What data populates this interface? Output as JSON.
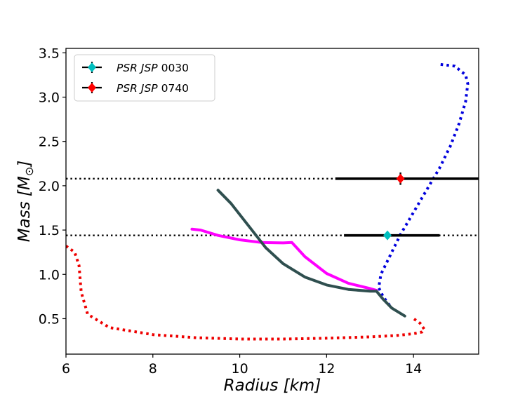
{
  "chart_data": {
    "type": "line",
    "xlabel": {
      "prefix": "Radius [",
      "unit": "km",
      "suffix": "]"
    },
    "ylabel": {
      "prefix": "Mass [",
      "unit": "M",
      "sub": "⊙",
      "suffix": "]"
    },
    "xlim": [
      6,
      15.5
    ],
    "ylim": [
      0.1,
      3.55
    ],
    "xticks": [
      6,
      8,
      10,
      12,
      14
    ],
    "xtick_labels": [
      "6",
      "8",
      "10",
      "12",
      "14"
    ],
    "yticks": [
      0.5,
      1.0,
      1.5,
      2.0,
      2.5,
      3.0,
      3.5
    ],
    "ytick_labels": [
      "0.5",
      "1.0",
      "1.5",
      "2.0",
      "2.5",
      "3.0",
      "3.5"
    ],
    "legend": {
      "placement": "top-left",
      "entries": [
        {
          "label_italic": "PSR JSP",
          "label_number": "0030",
          "color": "#00bfbf",
          "marker": "diamond"
        },
        {
          "label_italic": "PSR JSP",
          "label_number": "0740",
          "color": "#ff0000",
          "marker": "diamond"
        }
      ]
    },
    "measurements": [
      {
        "name": "PSR JSP 0030",
        "color": "#00bfbf",
        "radius": 13.4,
        "mass": 1.44,
        "radius_err": [
          12.4,
          14.6
        ],
        "mass_err": [
          1.41,
          1.47
        ],
        "dotted_line_mass": 1.44
      },
      {
        "name": "PSR JSP 0740",
        "color": "#ff0000",
        "radius": 13.7,
        "mass": 2.08,
        "radius_err": [
          12.2,
          15.5
        ],
        "mass_err": [
          2.01,
          2.15
        ],
        "dotted_line_mass": 2.08
      }
    ],
    "series": [
      {
        "name": "blue-dotted",
        "color": "#0000dd",
        "style": "dotted",
        "x": [
          13.45,
          13.3,
          13.2,
          13.25,
          13.45,
          13.7,
          14.0,
          14.3,
          14.6,
          14.85,
          15.05,
          15.2,
          15.25,
          15.2,
          14.95,
          14.6
        ],
        "y": [
          0.65,
          0.75,
          0.85,
          1.0,
          1.2,
          1.45,
          1.7,
          1.95,
          2.2,
          2.45,
          2.7,
          2.95,
          3.15,
          3.25,
          3.35,
          3.37
        ]
      },
      {
        "name": "red-dotted",
        "color": "#ee0000",
        "style": "dotted",
        "x": [
          6.0,
          6.2,
          6.3,
          6.35,
          6.5,
          7.0,
          8.0,
          9.0,
          10.0,
          11.0,
          12.0,
          13.0,
          13.6,
          14.0,
          14.2,
          14.25,
          14.15,
          14.0
        ],
        "y": [
          1.32,
          1.25,
          1.1,
          0.8,
          0.55,
          0.4,
          0.32,
          0.285,
          0.27,
          0.27,
          0.28,
          0.295,
          0.31,
          0.33,
          0.35,
          0.38,
          0.45,
          0.5
        ]
      },
      {
        "name": "magenta-solid",
        "color": "#ff00ff",
        "style": "solid",
        "x": [
          8.9,
          9.1,
          9.5,
          10.0,
          10.5,
          11.0,
          11.2,
          11.5,
          12.0,
          12.5,
          13.0,
          13.15
        ],
        "y": [
          1.51,
          1.5,
          1.44,
          1.39,
          1.36,
          1.355,
          1.36,
          1.2,
          1.01,
          0.9,
          0.84,
          0.82
        ]
      },
      {
        "name": "dark-slate-solid",
        "color": "#2f4f4f",
        "style": "solid",
        "x": [
          9.5,
          9.8,
          10.2,
          10.6,
          11.0,
          11.5,
          12.0,
          12.5,
          13.0,
          13.15,
          13.3,
          13.5,
          13.8
        ],
        "y": [
          1.95,
          1.8,
          1.55,
          1.3,
          1.12,
          0.97,
          0.88,
          0.83,
          0.81,
          0.81,
          0.72,
          0.62,
          0.53
        ]
      }
    ]
  }
}
